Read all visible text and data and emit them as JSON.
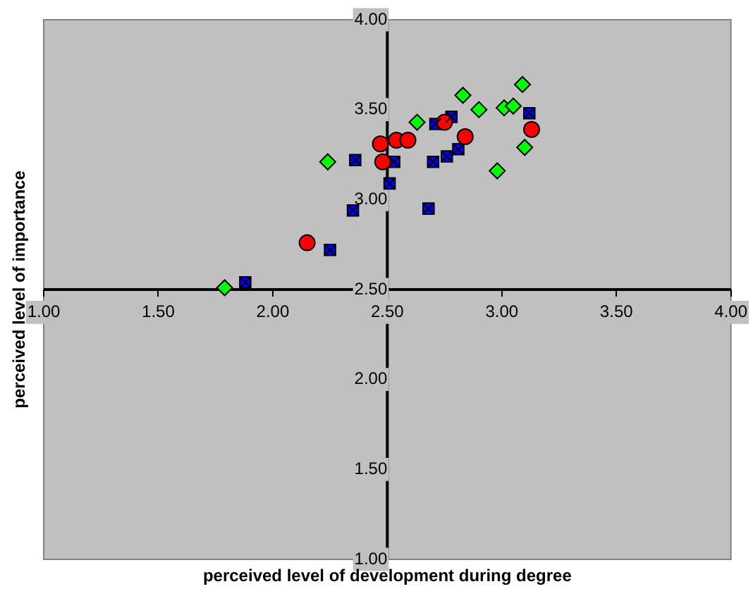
{
  "chart_data": {
    "type": "scatter",
    "xlabel": "perceived level of development during degree",
    "ylabel": "perceived level of importance",
    "xlim": [
      1,
      4
    ],
    "ylim": [
      1,
      4
    ],
    "xticks": [
      {
        "value": 1,
        "label": "1.00"
      },
      {
        "value": 1.5,
        "label": "1.50"
      },
      {
        "value": 2,
        "label": "2.00"
      },
      {
        "value": 2.5,
        "label": "2.50"
      },
      {
        "value": 3,
        "label": "3.00"
      },
      {
        "value": 3.5,
        "label": "3.50"
      },
      {
        "value": 4,
        "label": "4.00"
      }
    ],
    "yticks": [
      {
        "value": 1,
        "label": "1.00"
      },
      {
        "value": 1.5,
        "label": "1.50"
      },
      {
        "value": 2,
        "label": "2.00"
      },
      {
        "value": 2.5,
        "label": "2.50"
      },
      {
        "value": 3,
        "label": "3.00"
      },
      {
        "value": 3.5,
        "label": "3.50"
      },
      {
        "value": 4,
        "label": "4.00"
      }
    ],
    "grid": false,
    "legend": false,
    "series": [
      {
        "color": "#ff0000",
        "marker": "circle",
        "x": [
          2.15,
          2.47,
          2.48,
          2.54,
          2.59,
          2.75,
          2.84,
          3.13
        ],
        "values": [
          2.76,
          3.31,
          3.21,
          3.33,
          3.33,
          3.43,
          3.35,
          3.39
        ]
      },
      {
        "color": "#00ff00",
        "marker": "diamond",
        "x": [
          1.79,
          2.24,
          2.63,
          2.83,
          2.9,
          2.98,
          3.01,
          3.05,
          3.09,
          3.1
        ],
        "values": [
          2.51,
          3.21,
          3.43,
          3.58,
          3.5,
          3.16,
          3.51,
          3.52,
          3.64,
          3.29
        ]
      },
      {
        "color": "#0000ff",
        "marker": "square",
        "x": [
          1.88,
          2.25,
          2.35,
          2.36,
          2.51,
          2.53,
          2.68,
          2.7,
          2.71,
          2.76,
          2.78,
          2.81,
          3.12
        ],
        "values": [
          2.54,
          2.72,
          2.94,
          3.22,
          3.09,
          3.21,
          2.95,
          3.21,
          3.42,
          3.24,
          3.46,
          3.28,
          3.48
        ]
      }
    ]
  }
}
